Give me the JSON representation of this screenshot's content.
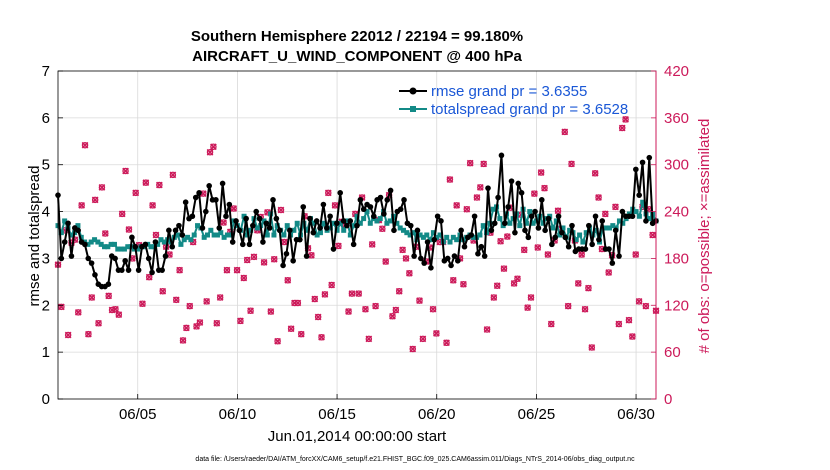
{
  "chart_data": {
    "type": "line",
    "title_line1": "Southern Hemisphere 22012 / 22194 = 99.180%",
    "title_line2": "AIRCRAFT_U_WIND_COMPONENT @ 400 hPa",
    "xlabel": "Jun.01,2014 00:00:00 start",
    "ylabel_left": "rmse and totalspread",
    "ylabel_right": "# of obs: o=possible; ×=assimilated",
    "footnote": "data file: /Users/raeder/DAI/ATM_forcXX/CAM6_setup/f.e21.FHIST_BGC.f09_025.CAM6assim.011/Diags_NTrS_2014-06/obs_diag_output.nc",
    "xlim": [
      1,
      31
    ],
    "ylim_left": [
      0,
      7
    ],
    "ylim_right": [
      0,
      420
    ],
    "grid": true,
    "legend_location": "top-right",
    "x_ticks": [
      {
        "value": 5,
        "label": "06/05"
      },
      {
        "value": 10,
        "label": "06/10"
      },
      {
        "value": 15,
        "label": "06/15"
      },
      {
        "value": 20,
        "label": "06/20"
      },
      {
        "value": 25,
        "label": "06/25"
      },
      {
        "value": 30,
        "label": "06/30"
      }
    ],
    "y_left_ticks": [
      {
        "value": 0,
        "label": "0"
      },
      {
        "value": 1,
        "label": "1"
      },
      {
        "value": 2,
        "label": "2"
      },
      {
        "value": 3,
        "label": "3"
      },
      {
        "value": 4,
        "label": "4"
      },
      {
        "value": 5,
        "label": "5"
      },
      {
        "value": 6,
        "label": "6"
      },
      {
        "value": 7,
        "label": "7"
      }
    ],
    "y_right_ticks": [
      {
        "value": 0,
        "label": "0"
      },
      {
        "value": 60,
        "label": "60"
      },
      {
        "value": 120,
        "label": "120"
      },
      {
        "value": 180,
        "label": "180"
      },
      {
        "value": 240,
        "label": "240"
      },
      {
        "value": 300,
        "label": "300"
      },
      {
        "value": 360,
        "label": "360"
      },
      {
        "value": 420,
        "label": "420"
      }
    ],
    "colors": {
      "rmse": "#000000",
      "spread": "#138a87",
      "obs": "#cc1a5a"
    },
    "series": [
      {
        "name": "rmse grand pr = 3.6355",
        "axis": "left",
        "values": [
          4.35,
          3.0,
          3.35,
          3.75,
          3.05,
          3.65,
          3.6,
          3.35,
          3.3,
          3.0,
          2.9,
          2.65,
          2.45,
          2.4,
          2.4,
          2.45,
          3.05,
          3.0,
          2.75,
          2.75,
          2.95,
          2.75,
          3.45,
          3.25,
          2.75,
          3.25,
          3.3,
          3.0,
          2.7,
          3.35,
          2.75,
          2.75,
          3.05,
          3.6,
          3.25,
          3.6,
          3.7,
          3.5,
          4.2,
          3.85,
          3.9,
          4.3,
          4.4,
          3.65,
          4.0,
          4.55,
          4.25,
          4.25,
          3.65,
          4.6,
          3.9,
          4.15,
          3.35,
          3.8,
          3.6,
          3.3,
          3.85,
          3.3,
          3.7,
          4.0,
          3.85,
          3.35,
          3.75,
          3.65,
          4.25,
          3.85,
          3.6,
          2.85,
          3.1,
          3.6,
          2.95,
          3.4,
          3.4,
          4.1,
          3.05,
          3.85,
          3.55,
          3.8,
          3.65,
          4.15,
          3.65,
          3.9,
          3.2,
          3.75,
          4.4,
          3.8,
          3.7,
          3.8,
          3.3,
          3.7,
          4.25,
          4.05,
          4.15,
          4.1,
          3.9,
          4.25,
          4.3,
          3.95,
          4.25,
          4.45,
          3.6,
          4.0,
          4.05,
          4.25,
          3.75,
          3.7,
          3.05,
          3.6,
          3.0,
          2.9,
          3.35,
          2.8,
          3.4,
          3.9,
          3.8,
          2.95,
          3.0,
          2.85,
          3.05,
          2.95,
          3.6,
          3.25,
          3.45,
          3.5,
          3.9,
          3.1,
          3.25,
          3.05,
          4.5,
          3.6,
          3.75,
          4.3,
          5.2,
          3.75,
          4.1,
          4.65,
          3.55,
          4.6,
          4.4,
          3.6,
          3.45,
          3.9,
          4.0,
          3.65,
          4.25,
          3.6,
          3.85,
          3.3,
          3.45,
          3.9,
          3.55,
          3.45,
          3.25,
          3.7,
          3.15,
          3.2,
          3.2,
          3.2,
          3.7,
          3.3,
          3.9,
          3.4,
          3.8,
          3.2,
          3.2,
          2.9,
          3.6,
          3.05,
          4.0,
          3.9,
          3.9,
          3.9,
          4.9,
          4.35,
          5.05,
          3.8,
          5.15,
          3.75,
          3.8
        ]
      },
      {
        "name": "totalspread grand pr = 3.6528",
        "axis": "left",
        "values": [
          3.7,
          3.55,
          3.8,
          3.65,
          3.5,
          3.55,
          3.7,
          3.45,
          3.35,
          3.3,
          3.35,
          3.4,
          3.35,
          3.3,
          3.25,
          3.25,
          3.3,
          3.3,
          3.2,
          3.2,
          3.2,
          3.25,
          3.25,
          3.2,
          3.2,
          3.25,
          3.25,
          3.3,
          3.25,
          3.25,
          3.3,
          3.4,
          3.35,
          3.4,
          3.35,
          3.45,
          3.5,
          3.3,
          3.4,
          3.45,
          3.4,
          3.5,
          3.7,
          3.65,
          3.45,
          3.5,
          3.6,
          3.5,
          3.5,
          3.55,
          3.45,
          3.5,
          3.5,
          3.8,
          3.7,
          3.6,
          3.9,
          3.5,
          3.6,
          3.85,
          3.65,
          3.7,
          3.8,
          3.5,
          3.95,
          3.5,
          3.7,
          3.6,
          3.5,
          3.7,
          3.5,
          3.6,
          3.75,
          3.5,
          3.75,
          3.6,
          3.85,
          3.75,
          3.5,
          3.55,
          3.75,
          3.6,
          3.65,
          3.75,
          3.6,
          3.75,
          3.6,
          3.8,
          3.5,
          3.7,
          3.9,
          3.75,
          3.85,
          4.0,
          3.75,
          3.85,
          3.8,
          3.85,
          4.0,
          3.75,
          3.8,
          3.9,
          3.75,
          3.65,
          3.6,
          3.55,
          3.5,
          3.55,
          3.4,
          3.5,
          3.45,
          3.5,
          3.4,
          3.55,
          3.45,
          3.5,
          3.35,
          3.45,
          3.35,
          3.45,
          3.4,
          3.5,
          3.4,
          3.45,
          3.5,
          3.45,
          3.45,
          3.5,
          3.7,
          3.55,
          3.75,
          4.05,
          4.1,
          3.85,
          3.7,
          3.95,
          3.75,
          3.85,
          3.95,
          3.7,
          4.05,
          3.75,
          4.0,
          3.75,
          3.8,
          3.9,
          3.75,
          3.85,
          3.9,
          3.65,
          3.8,
          3.5,
          3.65,
          3.45,
          3.6,
          3.55,
          3.4,
          3.5,
          3.35,
          3.55,
          3.65,
          3.5,
          3.6,
          3.35,
          3.65,
          3.65,
          3.65,
          3.7,
          3.65,
          3.8,
          3.75,
          3.85,
          3.95,
          4.05,
          4.0,
          3.9,
          4.2,
          3.95,
          3.85,
          3.95,
          3.8
        ]
      },
      {
        "name": "possible",
        "axis": "right",
        "values": [
          172,
          118,
          216,
          82,
          200,
          204,
          111,
          248,
          325,
          83,
          130,
          255,
          97,
          271,
          212,
          132,
          114,
          115,
          108,
          237,
          292,
          217,
          180,
          264,
          197,
          122,
          277,
          156,
          248,
          210,
          274,
          138,
          195,
          185,
          287,
          127,
          165,
          75,
          91,
          119,
          201,
          93,
          98,
          263,
          125,
          316,
          323,
          97,
          130,
          226,
          165,
          214,
          244,
          165,
          100,
          155,
          178,
          113,
          182,
          216,
          233,
          175,
          239,
          112,
          179,
          74,
          242,
          201,
          152,
          90,
          123,
          123,
          83,
          234,
          193,
          184,
          128,
          105,
          79,
          134,
          264,
          146,
          248,
          196,
          227,
          223,
          112,
          135,
          237,
          135,
          258,
          115,
          77,
          198,
          119,
          229,
          218,
          176,
          261,
          106,
          114,
          138,
          191,
          180,
          161,
          64,
          195,
          126,
          77,
          176,
          194,
          115,
          84,
          201,
          201,
          72,
          281,
          152,
          248,
          180,
          147,
          243,
          302,
          203,
          258,
          271,
          301,
          89,
          213,
          130,
          145,
          202,
          167,
          208,
          245,
          148,
          154,
          236,
          191,
          117,
          130,
          263,
          194,
          290,
          270,
          185,
          96,
          203,
          241,
          218,
          342,
          119,
          301,
          203,
          148,
          185,
          115,
          142,
          66,
          289,
          258,
          192,
          237,
          162,
          184,
          246,
          96,
          347,
          358,
          101,
          80,
          185,
          125,
          246,
          119,
          243,
          210,
          113
        ]
      },
      {
        "name": "assimilated",
        "axis": "right",
        "values": [
          172,
          118,
          216,
          82,
          200,
          204,
          111,
          248,
          325,
          83,
          130,
          255,
          97,
          271,
          212,
          132,
          114,
          115,
          108,
          237,
          292,
          217,
          180,
          264,
          197,
          122,
          277,
          156,
          248,
          210,
          274,
          138,
          195,
          185,
          287,
          127,
          165,
          75,
          91,
          119,
          201,
          93,
          98,
          263,
          125,
          316,
          323,
          97,
          130,
          226,
          165,
          214,
          244,
          165,
          100,
          155,
          178,
          113,
          182,
          216,
          233,
          175,
          239,
          112,
          179,
          74,
          242,
          201,
          152,
          90,
          123,
          123,
          83,
          234,
          193,
          184,
          128,
          105,
          79,
          134,
          264,
          146,
          248,
          196,
          227,
          223,
          112,
          135,
          237,
          135,
          258,
          115,
          77,
          198,
          119,
          229,
          218,
          176,
          261,
          106,
          114,
          138,
          191,
          180,
          161,
          64,
          195,
          126,
          77,
          176,
          194,
          115,
          84,
          201,
          201,
          72,
          281,
          152,
          248,
          180,
          147,
          243,
          302,
          203,
          258,
          271,
          301,
          89,
          213,
          130,
          145,
          202,
          167,
          208,
          245,
          148,
          154,
          236,
          191,
          117,
          130,
          263,
          194,
          290,
          270,
          185,
          96,
          203,
          241,
          218,
          342,
          119,
          301,
          203,
          148,
          185,
          115,
          142,
          66,
          289,
          258,
          192,
          237,
          162,
          184,
          246,
          96,
          347,
          358,
          101,
          80,
          185,
          125,
          246,
          119,
          243,
          210,
          113
        ]
      }
    ]
  }
}
